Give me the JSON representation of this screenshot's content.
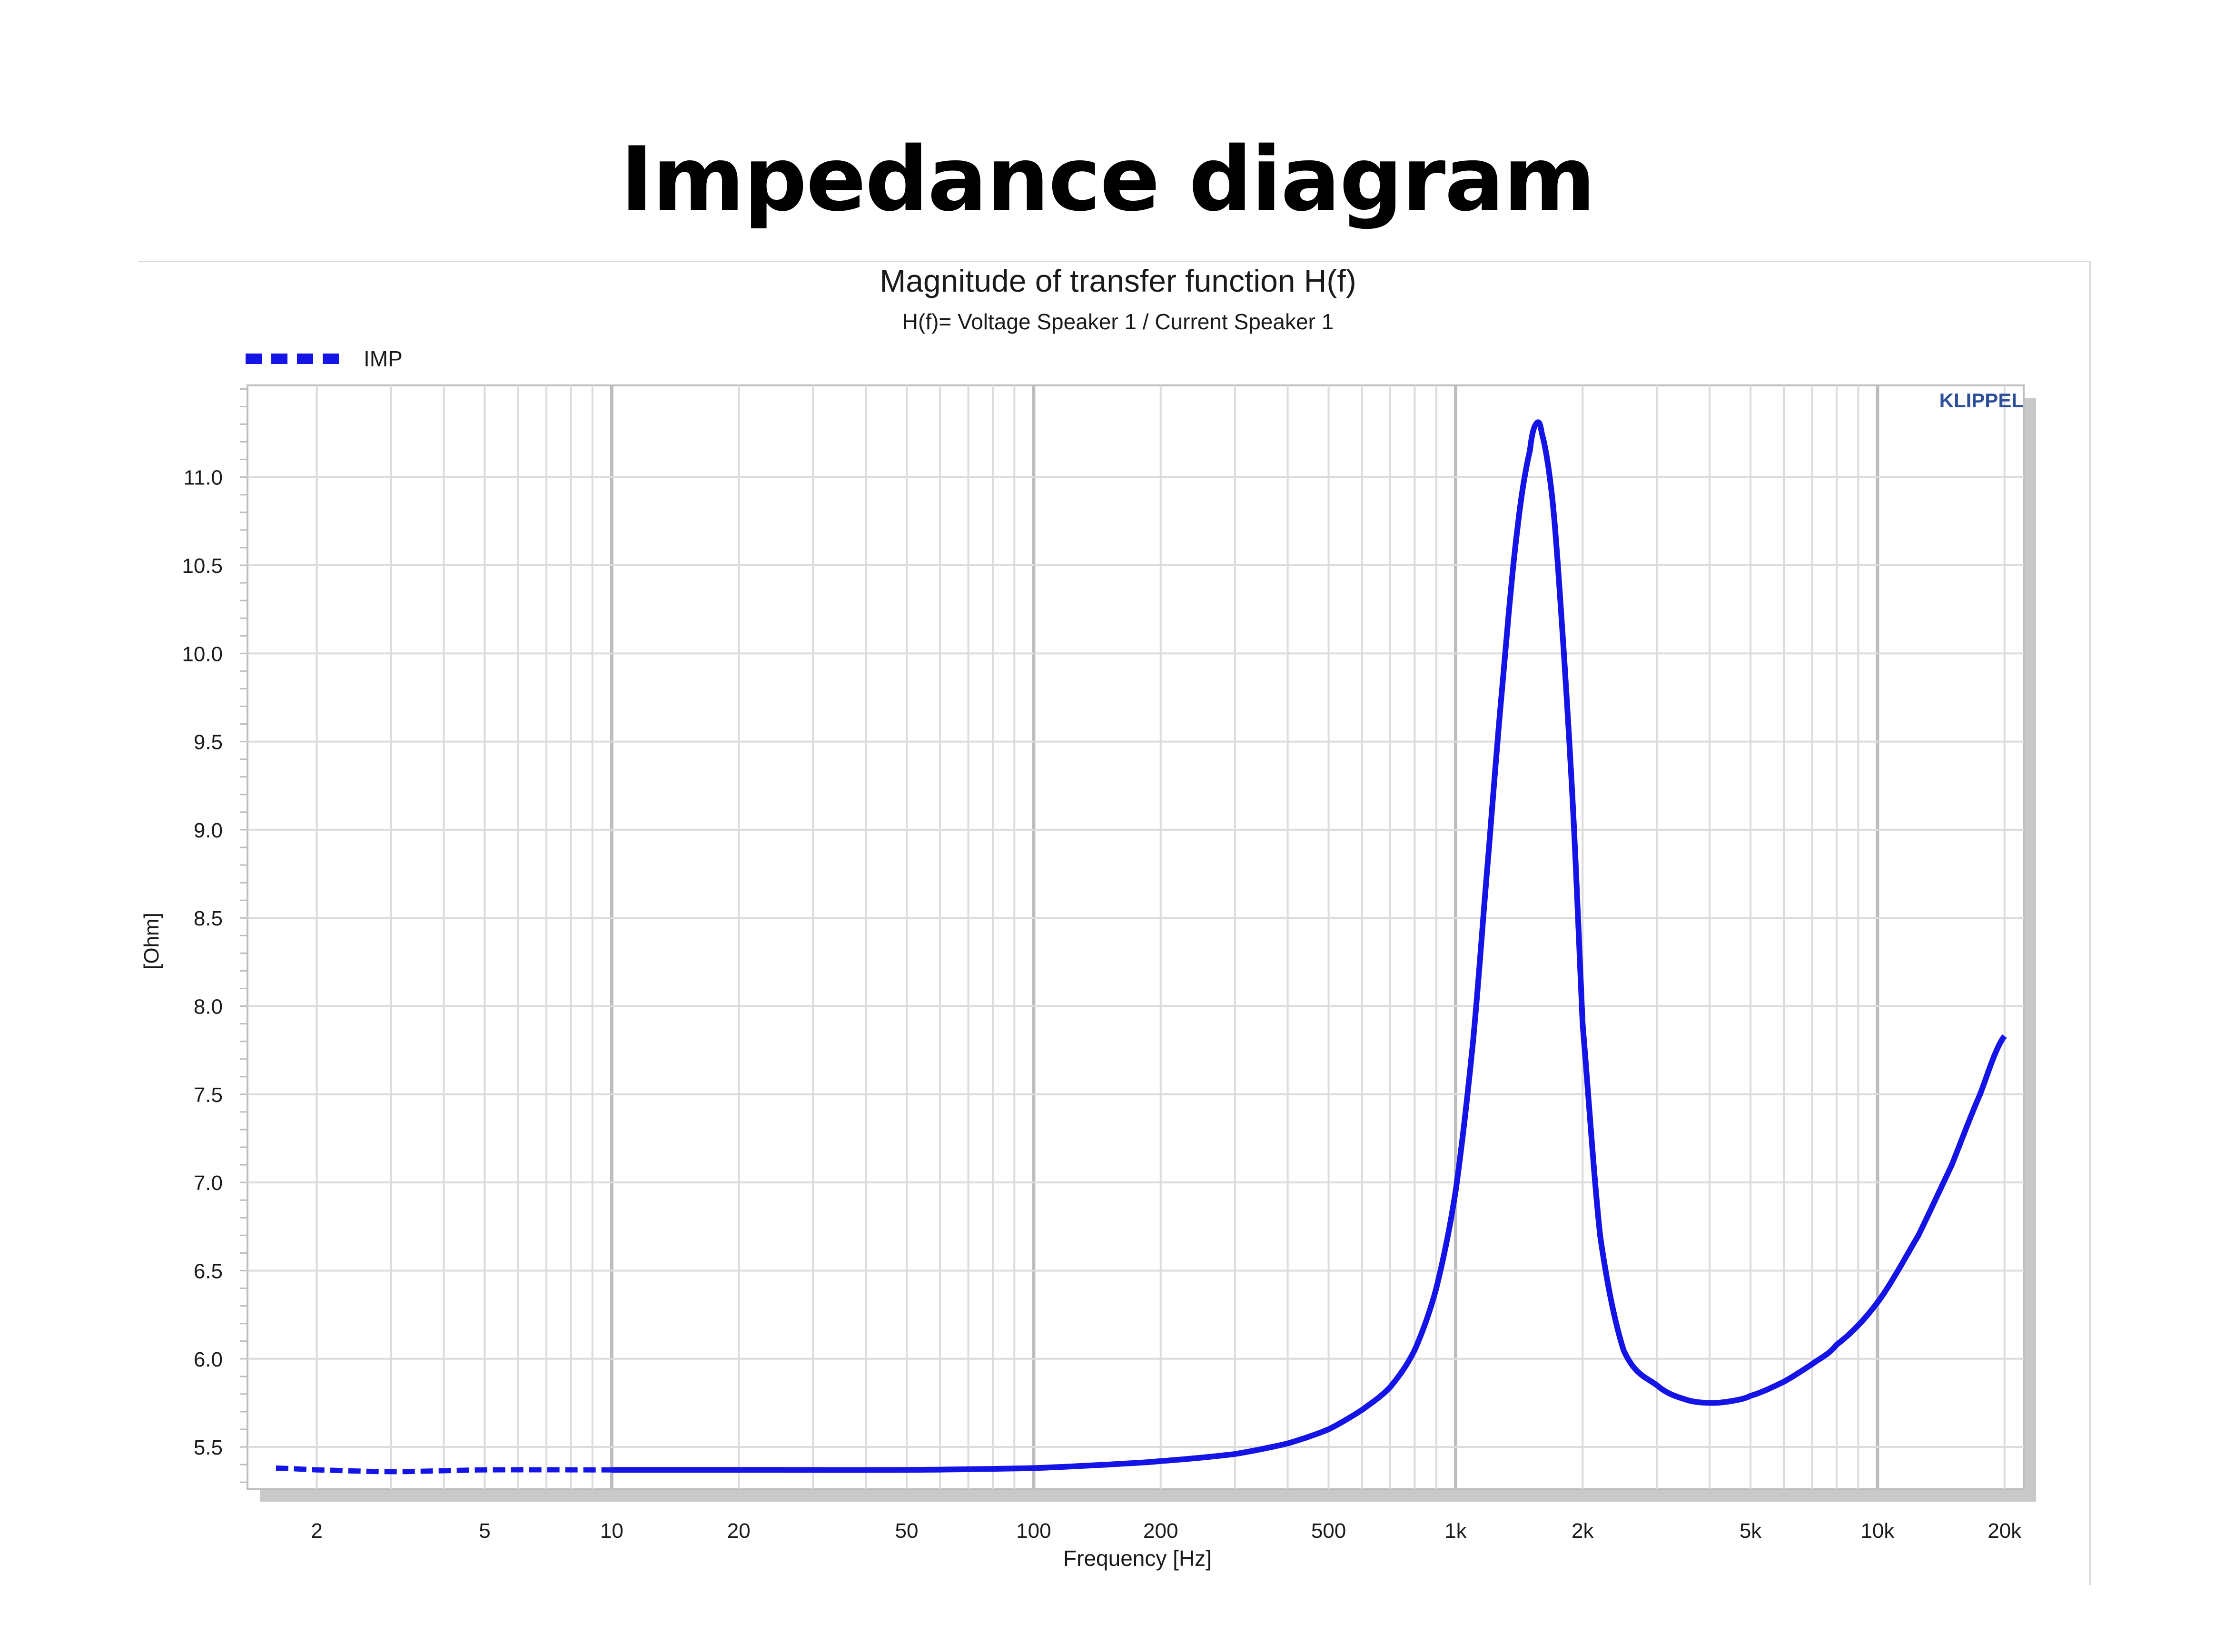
{
  "page_title": "Impedance diagram",
  "chart_data": {
    "type": "line",
    "title": "Magnitude of transfer function H(f)",
    "subtitle": "H(f)= Voltage Speaker 1 / Current Speaker 1",
    "xlabel": "Frequency [Hz]",
    "ylabel": "[Ohm]",
    "x_scale": "log",
    "xlim": [
      1.37,
      22200
    ],
    "ylim": [
      5.26,
      11.52
    ],
    "grid": true,
    "legend_position": "top-left",
    "brand_label": "KLIPPEL",
    "x_ticks": [
      {
        "value": 2,
        "label": "2"
      },
      {
        "value": 5,
        "label": "5"
      },
      {
        "value": 10,
        "label": "10"
      },
      {
        "value": 20,
        "label": "20"
      },
      {
        "value": 50,
        "label": "50"
      },
      {
        "value": 100,
        "label": "100"
      },
      {
        "value": 200,
        "label": "200"
      },
      {
        "value": 500,
        "label": "500"
      },
      {
        "value": 1000,
        "label": "1k"
      },
      {
        "value": 2000,
        "label": "2k"
      },
      {
        "value": 5000,
        "label": "5k"
      },
      {
        "value": 10000,
        "label": "10k"
      },
      {
        "value": 20000,
        "label": "20k"
      }
    ],
    "y_ticks": [
      {
        "value": 5.5,
        "label": "5.5"
      },
      {
        "value": 6.0,
        "label": "6.0"
      },
      {
        "value": 6.5,
        "label": "6.5"
      },
      {
        "value": 7.0,
        "label": "7.0"
      },
      {
        "value": 7.5,
        "label": "7.5"
      },
      {
        "value": 8.0,
        "label": "8.0"
      },
      {
        "value": 8.5,
        "label": "8.5"
      },
      {
        "value": 9.0,
        "label": "9.0"
      },
      {
        "value": 9.5,
        "label": "9.5"
      },
      {
        "value": 10.0,
        "label": "10.0"
      },
      {
        "value": 10.5,
        "label": "10.5"
      },
      {
        "value": 11.0,
        "label": "11.0"
      }
    ],
    "series": [
      {
        "name": "IMP",
        "color": "#1414e6",
        "x": [
          1.6,
          2,
          3,
          5,
          10,
          20,
          50,
          100,
          150,
          200,
          300,
          400,
          500,
          600,
          700,
          800,
          900,
          1000,
          1100,
          1200,
          1300,
          1400,
          1500,
          1550,
          1600,
          1700,
          1800,
          1900,
          2000,
          2200,
          2500,
          3000,
          3500,
          4000,
          4500,
          5000,
          6000,
          7000,
          8000,
          10000,
          12500,
          15000,
          17500,
          20000
        ],
        "y": [
          5.38,
          5.37,
          5.36,
          5.37,
          5.37,
          5.37,
          5.37,
          5.38,
          5.4,
          5.42,
          5.46,
          5.52,
          5.6,
          5.71,
          5.84,
          6.05,
          6.4,
          6.95,
          7.8,
          8.9,
          9.9,
          10.7,
          11.15,
          11.3,
          11.25,
          10.85,
          10.05,
          9.1,
          7.9,
          6.7,
          6.05,
          5.85,
          5.77,
          5.75,
          5.76,
          5.79,
          5.87,
          5.97,
          6.08,
          6.32,
          6.7,
          7.1,
          7.5,
          7.83
        ]
      }
    ]
  }
}
